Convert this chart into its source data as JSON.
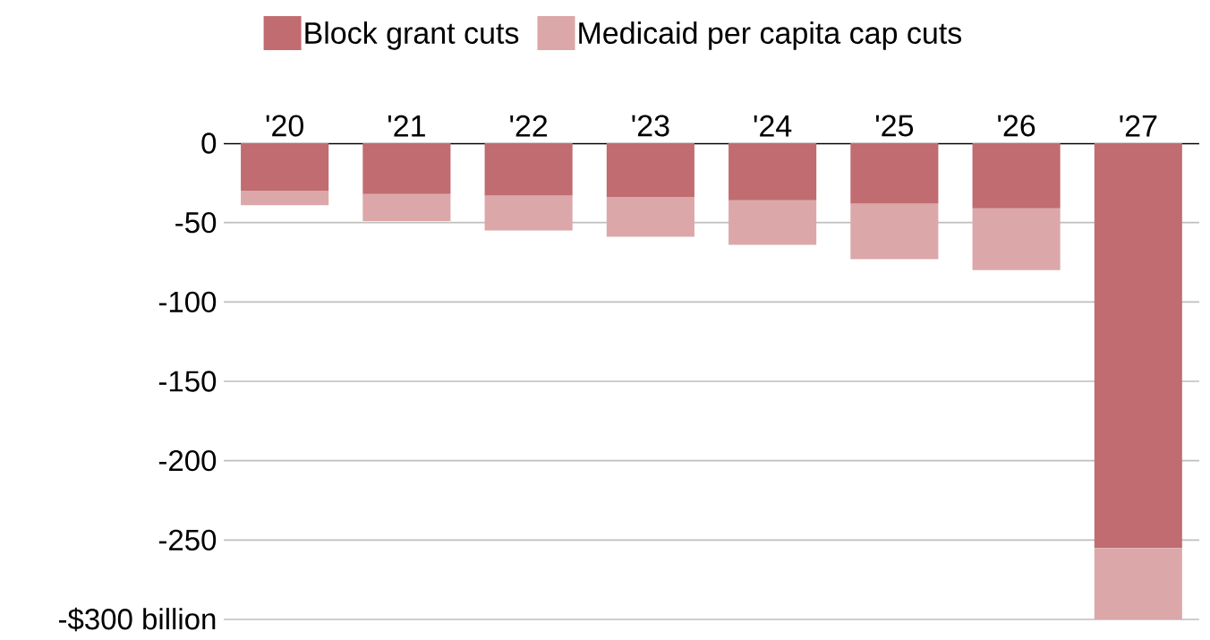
{
  "chart_data": {
    "type": "bar",
    "stacked": true,
    "categories": [
      "'20",
      "'21",
      "'22",
      "'23",
      "'24",
      "'25",
      "'26",
      "'27"
    ],
    "series": [
      {
        "name": "Block grant cuts",
        "color": "#c06c70",
        "values": [
          -30,
          -32,
          -33,
          -34,
          -36,
          -38,
          -41,
          -255
        ]
      },
      {
        "name": "Medicaid per capita cap cuts",
        "color": "#dca7a8",
        "values": [
          -9,
          -17,
          -22,
          -25,
          -28,
          -35,
          -39,
          -45
        ]
      }
    ],
    "ylim": [
      -300,
      0
    ],
    "yticks": [
      0,
      -50,
      -100,
      -150,
      -200,
      -250,
      {
        "value": -300,
        "label": "-$300 billion"
      }
    ],
    "grid": "y",
    "legend": "top"
  }
}
